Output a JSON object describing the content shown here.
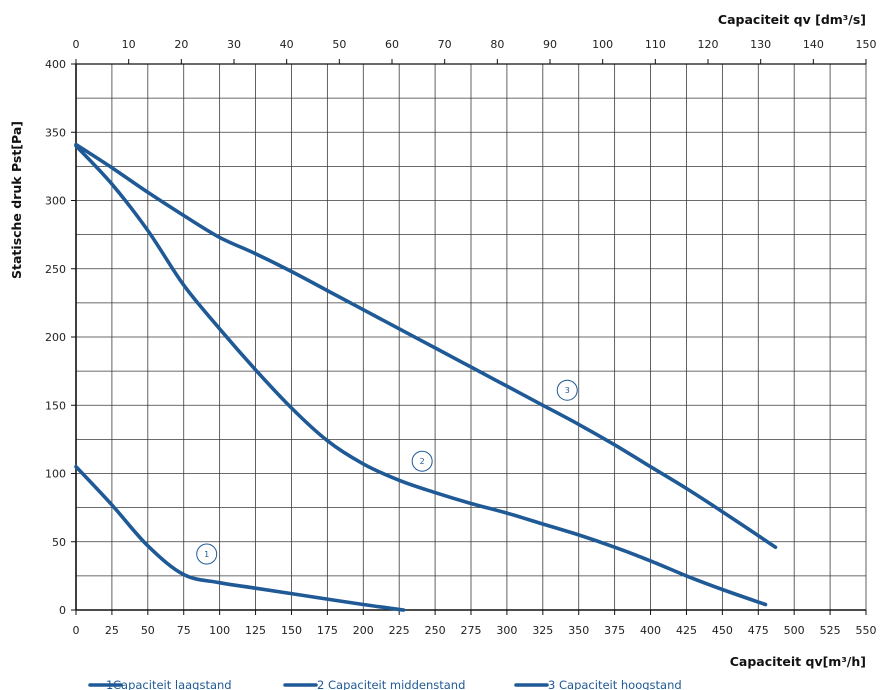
{
  "chart_data": {
    "type": "line",
    "title": "",
    "xlabel": "Capaciteit qv[m³/h]",
    "x2label": "Capaciteit qv [dm³/s]",
    "ylabel": "Statische druk Pst[Pa]",
    "xlim": [
      0,
      550
    ],
    "x2lim": [
      0,
      150
    ],
    "ylim": [
      0,
      400
    ],
    "x_ticks": [
      0,
      25,
      50,
      75,
      100,
      125,
      150,
      175,
      200,
      225,
      250,
      275,
      300,
      325,
      350,
      375,
      400,
      425,
      450,
      475,
      500,
      525,
      550
    ],
    "x2_ticks": [
      0,
      10,
      20,
      30,
      40,
      50,
      60,
      70,
      80,
      90,
      100,
      110,
      120,
      130,
      140,
      150
    ],
    "y_ticks": [
      0,
      50,
      100,
      150,
      200,
      250,
      300,
      350,
      400
    ],
    "grid": true,
    "legend_position": "bottom",
    "line_color": "#1f5a96",
    "series": [
      {
        "name": "Capaciteit laagstand",
        "number": "1",
        "x": [
          0,
          25,
          50,
          75,
          100,
          125,
          150,
          175,
          200,
          228
        ],
        "y": [
          105,
          77,
          47,
          26,
          20,
          16,
          12,
          8,
          4,
          0
        ]
      },
      {
        "name": "Capaciteit middenstand",
        "number": "2",
        "x": [
          0,
          25,
          50,
          75,
          100,
          125,
          150,
          175,
          200,
          225,
          250,
          275,
          300,
          325,
          350,
          375,
          400,
          425,
          450,
          480
        ],
        "y": [
          340,
          312,
          278,
          238,
          206,
          176,
          148,
          124,
          107,
          95,
          86,
          78,
          71,
          63,
          55,
          46,
          36,
          25,
          15,
          4
        ]
      },
      {
        "name": "Capaciteit hoogstand",
        "number": "3",
        "x": [
          0,
          25,
          50,
          75,
          100,
          125,
          150,
          175,
          200,
          225,
          250,
          275,
          300,
          325,
          350,
          375,
          400,
          425,
          450,
          487
        ],
        "y": [
          341,
          324,
          306,
          289,
          273,
          261,
          248,
          234,
          220,
          206,
          192,
          178,
          164,
          150,
          136,
          121,
          105,
          89,
          72,
          46
        ]
      }
    ],
    "annotations": [
      {
        "text": "1",
        "x": 91,
        "y": 41
      },
      {
        "text": "2",
        "x": 241,
        "y": 109
      },
      {
        "text": "3",
        "x": 342,
        "y": 161
      }
    ]
  }
}
